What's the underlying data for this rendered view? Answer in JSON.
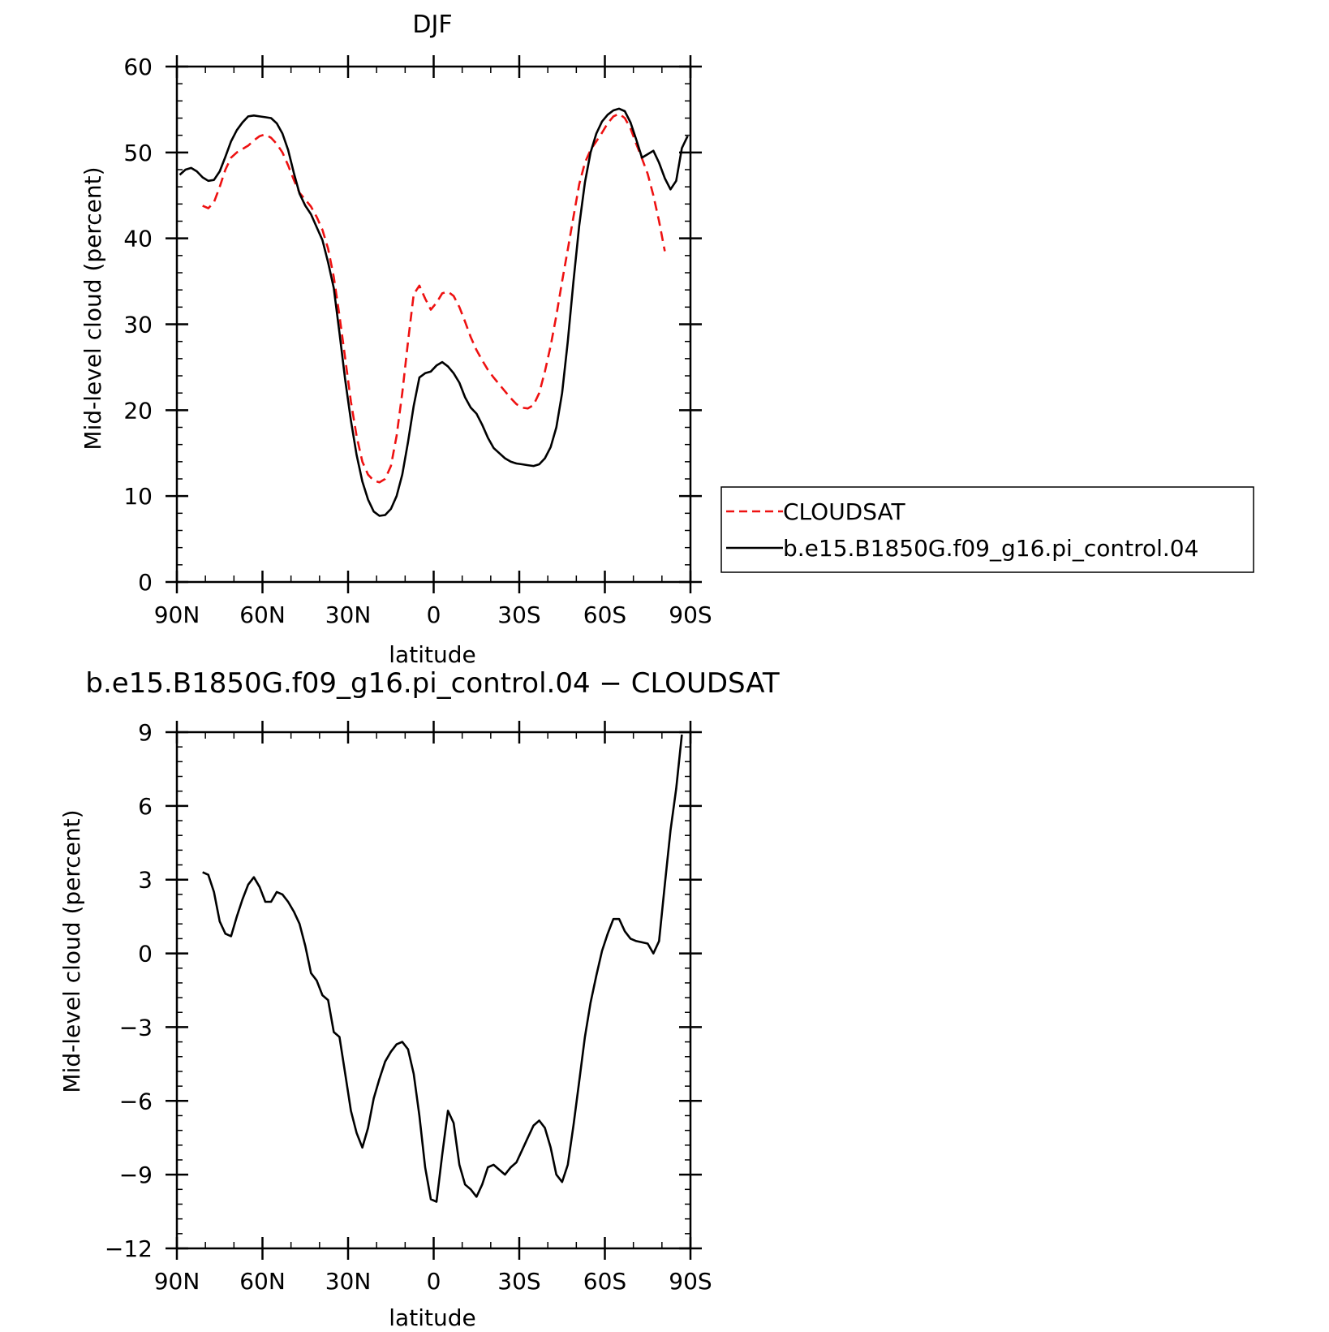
{
  "chart_data": [
    {
      "type": "line",
      "title": "DJF",
      "xlabel": "latitude",
      "ylabel": "Mid-level cloud (percent)",
      "xlim": [
        -90,
        90
      ],
      "ylim": [
        0,
        60
      ],
      "xticks": [
        -90,
        -60,
        -30,
        0,
        30,
        60,
        90
      ],
      "xtick_labels": [
        "90N",
        "60N",
        "30N",
        "0",
        "30S",
        "60S",
        "90S"
      ],
      "yticks": [
        0,
        10,
        20,
        30,
        40,
        50,
        60
      ],
      "ytick_labels": [
        "0",
        "10",
        "20",
        "30",
        "40",
        "50",
        "60"
      ],
      "yminor_step": 2,
      "legend": "right",
      "series": [
        {
          "name": "CLOUDSAT",
          "color": "#ee1111",
          "dash": "dashed",
          "points": [
            [
              -81,
              43.8
            ],
            [
              -79,
              43.5
            ],
            [
              -77,
              44.2
            ],
            [
              -75,
              46
            ],
            [
              -73,
              48
            ],
            [
              -71,
              49.4
            ],
            [
              -69,
              50
            ],
            [
              -67,
              50.4
            ],
            [
              -65,
              50.8
            ],
            [
              -63,
              51.4
            ],
            [
              -61,
              51.9
            ],
            [
              -59,
              52.1
            ],
            [
              -57,
              51.7
            ],
            [
              -55,
              51
            ],
            [
              -53,
              50
            ],
            [
              -51,
              48.5
            ],
            [
              -49,
              46.8
            ],
            [
              -47,
              45.3
            ],
            [
              -45,
              44.5
            ],
            [
              -43,
              43.7
            ],
            [
              -41,
              42.5
            ],
            [
              -39,
              41
            ],
            [
              -37,
              38.8
            ],
            [
              -35,
              35.5
            ],
            [
              -33,
              31
            ],
            [
              -31,
              26
            ],
            [
              -29,
              21
            ],
            [
              -27,
              17
            ],
            [
              -25,
              14
            ],
            [
              -23,
              12.5
            ],
            [
              -21,
              11.8
            ],
            [
              -19,
              11.6
            ],
            [
              -17,
              12
            ],
            [
              -15,
              13.5
            ],
            [
              -13,
              17
            ],
            [
              -11,
              22
            ],
            [
              -9,
              28
            ],
            [
              -7,
              33.5
            ],
            [
              -5,
              34.5
            ],
            [
              -3,
              33
            ],
            [
              -1,
              31.7
            ],
            [
              1,
              32.5
            ],
            [
              3,
              33.6
            ],
            [
              5,
              33.8
            ],
            [
              7,
              33.3
            ],
            [
              9,
              32
            ],
            [
              11,
              30.3
            ],
            [
              13,
              28.5
            ],
            [
              15,
              27
            ],
            [
              17,
              25.8
            ],
            [
              19,
              24.7
            ],
            [
              21,
              23.8
            ],
            [
              23,
              23
            ],
            [
              25,
              22.2
            ],
            [
              27,
              21.4
            ],
            [
              29,
              20.7
            ],
            [
              31,
              20.3
            ],
            [
              33,
              20.2
            ],
            [
              35,
              20.6
            ],
            [
              37,
              22
            ],
            [
              39,
              24.5
            ],
            [
              41,
              27.5
            ],
            [
              43,
              31
            ],
            [
              45,
              35
            ],
            [
              47,
              38.7
            ],
            [
              49,
              42.5
            ],
            [
              51,
              46.3
            ],
            [
              53,
              48.8
            ],
            [
              55,
              50.3
            ],
            [
              57,
              51.3
            ],
            [
              59,
              52.3
            ],
            [
              61,
              53.4
            ],
            [
              63,
              54.2
            ],
            [
              65,
              54.5
            ],
            [
              67,
              54
            ],
            [
              69,
              52.8
            ],
            [
              71,
              51
            ],
            [
              73,
              49.3
            ],
            [
              75,
              47.5
            ],
            [
              77,
              45
            ],
            [
              79,
              42
            ],
            [
              81,
              38.5
            ]
          ]
        },
        {
          "name": "b.e15.B1850G.f09_g16.pi_control.04",
          "color": "#000000",
          "dash": "solid",
          "points": [
            [
              -89,
              47.4
            ],
            [
              -87,
              48
            ],
            [
              -85,
              48.2
            ],
            [
              -83,
              47.8
            ],
            [
              -81,
              47.1
            ],
            [
              -79,
              46.7
            ],
            [
              -77,
              46.8
            ],
            [
              -75,
              47.8
            ],
            [
              -73,
              49.5
            ],
            [
              -71,
              51.3
            ],
            [
              -69,
              52.6
            ],
            [
              -67,
              53.5
            ],
            [
              -65,
              54.2
            ],
            [
              -63,
              54.3
            ],
            [
              -61,
              54.2
            ],
            [
              -59,
              54.1
            ],
            [
              -57,
              54
            ],
            [
              -55,
              53.4
            ],
            [
              -53,
              52.2
            ],
            [
              -51,
              50.3
            ],
            [
              -49,
              47.6
            ],
            [
              -47,
              45.2
            ],
            [
              -45,
              43.8
            ],
            [
              -43,
              42.8
            ],
            [
              -41,
              41.3
            ],
            [
              -39,
              39.8
            ],
            [
              -37,
              37.2
            ],
            [
              -35,
              34.2
            ],
            [
              -33,
              29
            ],
            [
              -31,
              23.5
            ],
            [
              -29,
              18.8
            ],
            [
              -27,
              14.8
            ],
            [
              -25,
              11.7
            ],
            [
              -23,
              9.6
            ],
            [
              -21,
              8.2
            ],
            [
              -19,
              7.7
            ],
            [
              -17,
              7.8
            ],
            [
              -15,
              8.5
            ],
            [
              -13,
              10
            ],
            [
              -11,
              12.5
            ],
            [
              -9,
              16.3
            ],
            [
              -7,
              20.5
            ],
            [
              -5,
              23.8
            ],
            [
              -3,
              24.3
            ],
            [
              -1,
              24.5
            ],
            [
              1,
              25.2
            ],
            [
              3,
              25.6
            ],
            [
              5,
              25.1
            ],
            [
              7,
              24.3
            ],
            [
              9,
              23.2
            ],
            [
              11,
              21.5
            ],
            [
              13,
              20.3
            ],
            [
              15,
              19.6
            ],
            [
              17,
              18.3
            ],
            [
              19,
              16.8
            ],
            [
              21,
              15.6
            ],
            [
              23,
              15
            ],
            [
              25,
              14.4
            ],
            [
              27,
              14
            ],
            [
              29,
              13.8
            ],
            [
              31,
              13.7
            ],
            [
              33,
              13.6
            ],
            [
              35,
              13.5
            ],
            [
              37,
              13.7
            ],
            [
              39,
              14.4
            ],
            [
              41,
              15.7
            ],
            [
              43,
              18
            ],
            [
              45,
              22
            ],
            [
              47,
              28
            ],
            [
              49,
              35
            ],
            [
              51,
              41.5
            ],
            [
              53,
              46.5
            ],
            [
              55,
              50
            ],
            [
              57,
              52.2
            ],
            [
              59,
              53.6
            ],
            [
              61,
              54.4
            ],
            [
              63,
              54.9
            ],
            [
              65,
              55.1
            ],
            [
              67,
              54.8
            ],
            [
              69,
              53.5
            ],
            [
              71,
              51.5
            ],
            [
              73,
              49.4
            ],
            [
              75,
              49.8
            ],
            [
              77,
              50.2
            ],
            [
              79,
              48.8
            ],
            [
              81,
              47
            ],
            [
              83,
              45.7
            ],
            [
              85,
              46.7
            ],
            [
              87,
              50.5
            ],
            [
              89,
              51.9
            ]
          ]
        }
      ]
    },
    {
      "type": "line",
      "title": "b.e15.B1850G.f09_g16.pi_control.04 − CLOUDSAT",
      "xlabel": "latitude",
      "ylabel": "Mid-level cloud (percent)",
      "xlim": [
        -90,
        90
      ],
      "ylim": [
        -12,
        9
      ],
      "xticks": [
        -90,
        -60,
        -30,
        0,
        30,
        60,
        90
      ],
      "xtick_labels": [
        "90N",
        "60N",
        "30N",
        "0",
        "30S",
        "60S",
        "90S"
      ],
      "yticks": [
        -12,
        -9,
        -6,
        -3,
        0,
        3,
        6,
        9
      ],
      "ytick_labels": [
        "−12",
        "−9",
        "−6",
        "−3",
        "0",
        "3",
        "6",
        "9"
      ],
      "yminor_step": 0.6,
      "series": [
        {
          "color": "#000000",
          "dash": "solid",
          "points": [
            [
              -81,
              3.3
            ],
            [
              -79,
              3.2
            ],
            [
              -77,
              2.5
            ],
            [
              -75,
              1.3
            ],
            [
              -73,
              0.8
            ],
            [
              -71,
              0.7
            ],
            [
              -69,
              1.5
            ],
            [
              -67,
              2.2
            ],
            [
              -65,
              2.8
            ],
            [
              -63,
              3.1
            ],
            [
              -61,
              2.7
            ],
            [
              -59,
              2.1
            ],
            [
              -57,
              2.1
            ],
            [
              -55,
              2.5
            ],
            [
              -53,
              2.4
            ],
            [
              -51,
              2.1
            ],
            [
              -49,
              1.7
            ],
            [
              -47,
              1.2
            ],
            [
              -45,
              0.3
            ],
            [
              -43,
              -0.8
            ],
            [
              -41,
              -1.1
            ],
            [
              -39,
              -1.7
            ],
            [
              -37,
              -1.9
            ],
            [
              -35,
              -3.2
            ],
            [
              -33,
              -3.4
            ],
            [
              -31,
              -4.9
            ],
            [
              -29,
              -6.4
            ],
            [
              -27,
              -7.3
            ],
            [
              -25,
              -7.9
            ],
            [
              -23,
              -7.1
            ],
            [
              -21,
              -5.9
            ],
            [
              -19,
              -5.1
            ],
            [
              -17,
              -4.4
            ],
            [
              -15,
              -4
            ],
            [
              -13,
              -3.7
            ],
            [
              -11,
              -3.6
            ],
            [
              -9,
              -3.9
            ],
            [
              -7,
              -4.9
            ],
            [
              -5,
              -6.6
            ],
            [
              -3,
              -8.7
            ],
            [
              -1,
              -10
            ],
            [
              1,
              -10.1
            ],
            [
              3,
              -8.2
            ],
            [
              5,
              -6.4
            ],
            [
              7,
              -6.9
            ],
            [
              9,
              -8.6
            ],
            [
              11,
              -9.4
            ],
            [
              13,
              -9.6
            ],
            [
              15,
              -9.9
            ],
            [
              17,
              -9.4
            ],
            [
              19,
              -8.7
            ],
            [
              21,
              -8.6
            ],
            [
              23,
              -8.8
            ],
            [
              25,
              -9
            ],
            [
              27,
              -8.7
            ],
            [
              29,
              -8.5
            ],
            [
              31,
              -8
            ],
            [
              33,
              -7.5
            ],
            [
              35,
              -7
            ],
            [
              37,
              -6.8
            ],
            [
              39,
              -7.1
            ],
            [
              41,
              -7.9
            ],
            [
              43,
              -9
            ],
            [
              45,
              -9.3
            ],
            [
              47,
              -8.6
            ],
            [
              49,
              -7
            ],
            [
              51,
              -5.2
            ],
            [
              53,
              -3.4
            ],
            [
              55,
              -2
            ],
            [
              57,
              -0.9
            ],
            [
              59,
              0.1
            ],
            [
              61,
              0.8
            ],
            [
              63,
              1.4
            ],
            [
              65,
              1.4
            ],
            [
              67,
              0.9
            ],
            [
              69,
              0.6
            ],
            [
              71,
              0.5
            ],
            [
              73,
              0.45
            ],
            [
              75,
              0.4
            ],
            [
              77,
              0
            ],
            [
              79,
              0.5
            ],
            [
              81,
              2.8
            ],
            [
              83,
              5
            ],
            [
              85,
              6.7
            ],
            [
              87,
              8.9
            ]
          ]
        }
      ]
    }
  ]
}
